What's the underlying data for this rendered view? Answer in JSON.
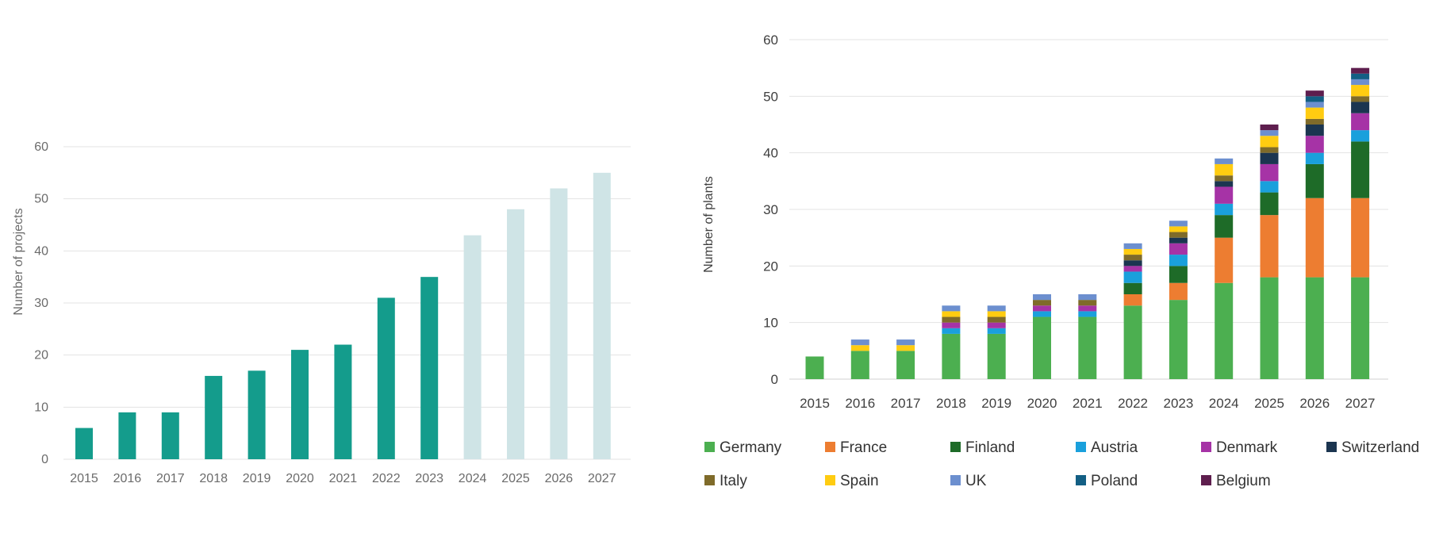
{
  "chart_data": [
    {
      "type": "bar",
      "ylabel": "Number of projects",
      "ylim": [
        0,
        60
      ],
      "yticks": [
        0,
        10,
        20,
        30,
        40,
        50,
        60
      ],
      "grid": true,
      "categories": [
        "2015",
        "2016",
        "2017",
        "2018",
        "2019",
        "2020",
        "2021",
        "2022",
        "2023",
        "2024",
        "2025",
        "2026",
        "2027"
      ],
      "values": [
        6,
        9,
        9,
        16,
        17,
        21,
        22,
        31,
        35,
        43,
        48,
        52,
        55
      ],
      "projected_from": "2024",
      "colors": {
        "actual": "#149c8c",
        "projected": "#cfe4e6"
      }
    },
    {
      "type": "bar",
      "stacked": true,
      "ylabel": "Number of  plants",
      "ylim": [
        0,
        60
      ],
      "yticks": [
        0,
        10,
        20,
        30,
        40,
        50,
        60
      ],
      "grid": true,
      "legend_position": "bottom",
      "categories": [
        "2015",
        "2016",
        "2017",
        "2018",
        "2019",
        "2020",
        "2021",
        "2022",
        "2023",
        "2024",
        "2025",
        "2026",
        "2027"
      ],
      "series": [
        {
          "name": "Germany",
          "color": "#4caf50",
          "values": [
            4,
            5,
            5,
            8,
            8,
            11,
            11,
            13,
            14,
            17,
            18,
            18,
            18
          ]
        },
        {
          "name": "France",
          "color": "#ed7d31",
          "values": [
            0,
            0,
            0,
            0,
            0,
            0,
            0,
            2,
            3,
            8,
            11,
            14,
            14
          ]
        },
        {
          "name": "Finland",
          "color": "#1e6b28",
          "values": [
            0,
            0,
            0,
            0,
            0,
            0,
            0,
            2,
            3,
            4,
            4,
            6,
            10
          ]
        },
        {
          "name": "Austria",
          "color": "#1aa0dc",
          "values": [
            0,
            0,
            0,
            1,
            1,
            1,
            1,
            2,
            2,
            2,
            2,
            2,
            2
          ]
        },
        {
          "name": "Denmark",
          "color": "#a633a6",
          "values": [
            0,
            0,
            0,
            1,
            1,
            1,
            1,
            1,
            2,
            3,
            3,
            3,
            3
          ]
        },
        {
          "name": "Switzerland",
          "color": "#1b3550",
          "values": [
            0,
            0,
            0,
            0,
            0,
            0,
            0,
            1,
            1,
            1,
            2,
            2,
            2
          ]
        },
        {
          "name": "Italy",
          "color": "#7f6b2a",
          "values": [
            0,
            0,
            0,
            1,
            1,
            1,
            1,
            1,
            1,
            1,
            1,
            1,
            1
          ]
        },
        {
          "name": "Spain",
          "color": "#ffcc11",
          "values": [
            0,
            1,
            1,
            1,
            1,
            0,
            0,
            1,
            1,
            2,
            2,
            2,
            2
          ]
        },
        {
          "name": "UK",
          "color": "#6c8fcf",
          "values": [
            0,
            1,
            1,
            1,
            1,
            1,
            1,
            1,
            1,
            1,
            1,
            1,
            1
          ]
        },
        {
          "name": "Poland",
          "color": "#135f84",
          "values": [
            0,
            0,
            0,
            0,
            0,
            0,
            0,
            0,
            0,
            0,
            0,
            1,
            1
          ]
        },
        {
          "name": "Belgium",
          "color": "#5e1e4e",
          "values": [
            0,
            0,
            0,
            0,
            0,
            0,
            0,
            0,
            0,
            0,
            1,
            1,
            1
          ]
        }
      ]
    }
  ]
}
